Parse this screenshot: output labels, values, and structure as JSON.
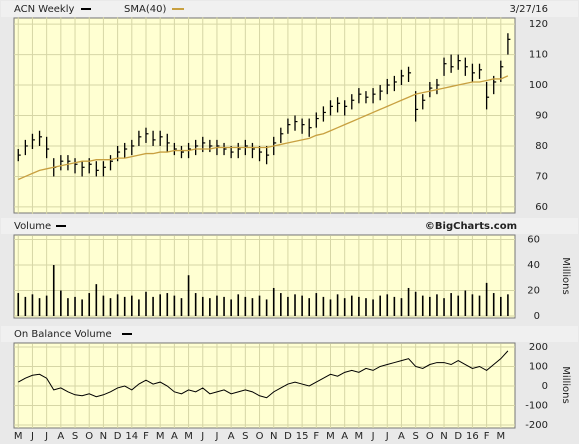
{
  "chart_data": [
    {
      "type": "ohlc",
      "title": "ACN Weekly",
      "date": "3/27/16",
      "x": [
        0,
        0.5,
        1,
        1.5,
        2,
        2.5,
        3,
        3.5,
        4,
        4.5,
        5,
        5.5,
        6,
        6.5,
        7,
        7.5,
        8,
        8.5,
        9,
        9.5,
        10,
        10.5,
        11,
        11.5,
        12,
        12.5,
        13,
        13.5,
        14,
        14.5,
        15,
        15.5,
        16,
        16.5,
        17,
        17.5,
        18,
        18.5,
        19,
        19.5,
        20,
        20.5,
        21,
        21.5,
        22,
        22.5,
        23,
        23.5,
        24,
        24.5,
        25,
        25.5,
        26,
        26.5,
        27,
        27.5,
        28,
        28.5,
        29,
        29.5,
        30,
        30.5,
        31,
        31.5,
        32,
        32.5,
        33,
        33.5,
        34,
        34.5
      ],
      "xlim": [
        -0.3,
        35.0
      ],
      "xticks": [
        {
          "value": 0,
          "label": "M"
        },
        {
          "value": 1,
          "label": "J"
        },
        {
          "value": 2,
          "label": "J"
        },
        {
          "value": 3,
          "label": "A"
        },
        {
          "value": 4,
          "label": "S"
        },
        {
          "value": 5,
          "label": "O"
        },
        {
          "value": 6,
          "label": "N"
        },
        {
          "value": 7,
          "label": "D"
        },
        {
          "value": 8,
          "label": "14"
        },
        {
          "value": 9,
          "label": "F"
        },
        {
          "value": 10,
          "label": "M"
        },
        {
          "value": 11,
          "label": "A"
        },
        {
          "value": 12,
          "label": "M"
        },
        {
          "value": 13,
          "label": "J"
        },
        {
          "value": 14,
          "label": "J"
        },
        {
          "value": 15,
          "label": "A"
        },
        {
          "value": 16,
          "label": "S"
        },
        {
          "value": 17,
          "label": "O"
        },
        {
          "value": 18,
          "label": "N"
        },
        {
          "value": 19,
          "label": "D"
        },
        {
          "value": 20,
          "label": "15"
        },
        {
          "value": 21,
          "label": "F"
        },
        {
          "value": 22,
          "label": "M"
        },
        {
          "value": 23,
          "label": "A"
        },
        {
          "value": 24,
          "label": "M"
        },
        {
          "value": 25,
          "label": "J"
        },
        {
          "value": 26,
          "label": "J"
        },
        {
          "value": 27,
          "label": "A"
        },
        {
          "value": 28,
          "label": "S"
        },
        {
          "value": 29,
          "label": "O"
        },
        {
          "value": 30,
          "label": "N"
        },
        {
          "value": 31,
          "label": "D"
        },
        {
          "value": 32,
          "label": "16"
        },
        {
          "value": 33,
          "label": "F"
        },
        {
          "value": 34,
          "label": "M"
        }
      ],
      "ylim": [
        58,
        122
      ],
      "yticks": [
        60,
        70,
        80,
        90,
        100,
        110,
        120
      ],
      "grid": true,
      "series": [
        {
          "name": "ACN Weekly",
          "color": "#000000",
          "high": [
            79,
            82,
            84,
            85,
            83,
            76,
            77,
            77,
            76,
            75,
            76,
            75,
            75,
            77,
            80,
            81,
            82,
            85,
            86,
            85,
            85,
            84,
            81,
            80,
            81,
            82,
            83,
            82,
            82,
            81,
            80,
            81,
            82,
            81,
            80,
            80,
            83,
            86,
            89,
            90,
            89,
            89,
            91,
            93,
            95,
            96,
            95,
            97,
            99,
            98,
            99,
            100,
            102,
            103,
            105,
            106,
            98,
            97,
            101,
            102,
            109,
            110,
            110,
            109,
            107,
            107,
            101,
            103,
            108,
            117
          ],
          "low": [
            75,
            77,
            79,
            80,
            76,
            70,
            72,
            72,
            71,
            70,
            71,
            70,
            70,
            72,
            75,
            76,
            77,
            80,
            81,
            80,
            80,
            78,
            77,
            76,
            76,
            77,
            78,
            78,
            77,
            77,
            76,
            76,
            77,
            76,
            75,
            74,
            77,
            81,
            84,
            85,
            84,
            83,
            86,
            88,
            90,
            91,
            90,
            92,
            94,
            94,
            94,
            95,
            97,
            98,
            100,
            101,
            88,
            92,
            96,
            97,
            103,
            104,
            105,
            103,
            101,
            102,
            92,
            97,
            101,
            110
          ],
          "close": [
            77,
            80,
            82,
            83,
            79,
            73,
            75,
            75,
            74,
            73,
            74,
            72,
            73,
            75,
            78,
            79,
            80,
            83,
            84,
            82,
            83,
            81,
            79,
            78,
            79,
            80,
            81,
            80,
            80,
            79,
            78,
            79,
            80,
            79,
            78,
            77,
            81,
            84,
            87,
            88,
            87,
            86,
            89,
            91,
            93,
            94,
            93,
            95,
            97,
            96,
            97,
            98,
            100,
            101,
            103,
            104,
            92,
            95,
            99,
            100,
            107,
            106,
            108,
            106,
            104,
            105,
            96,
            101,
            106,
            115
          ]
        },
        {
          "name": "SMA(40)",
          "color": "#c8a040",
          "values": [
            69,
            70,
            71,
            72,
            72.5,
            73,
            73.5,
            74,
            74.5,
            75,
            75,
            75.5,
            75.5,
            75.5,
            76,
            76,
            76.5,
            77,
            77.5,
            77.5,
            78,
            78,
            78.5,
            78.5,
            78.5,
            79,
            79,
            79,
            79.5,
            79.5,
            79.5,
            79.5,
            79.5,
            79.5,
            79.5,
            79.5,
            80,
            80.5,
            81,
            81.5,
            82,
            82.5,
            83.5,
            84,
            85,
            86,
            87,
            88,
            89,
            90,
            91,
            92,
            93,
            94,
            95,
            96,
            97,
            97.5,
            98,
            98.5,
            99,
            99.5,
            100,
            100.5,
            101,
            101,
            101.5,
            102,
            102,
            103
          ]
        }
      ]
    },
    {
      "type": "bar",
      "title": "Volume",
      "credit": "©BigCharts.com",
      "y_label": "Millions",
      "color": "#000000",
      "ylim": [
        0,
        62
      ],
      "yticks": [
        0,
        20,
        40,
        60
      ],
      "grid": true,
      "values": [
        18,
        15,
        17,
        14,
        16,
        40,
        20,
        14,
        15,
        13,
        18,
        25,
        16,
        14,
        17,
        15,
        16,
        13,
        19,
        15,
        17,
        18,
        16,
        14,
        32,
        18,
        15,
        14,
        16,
        15,
        13,
        17,
        15,
        14,
        16,
        13,
        22,
        18,
        15,
        17,
        16,
        14,
        18,
        15,
        13,
        17,
        14,
        16,
        15,
        14,
        13,
        16,
        17,
        15,
        14,
        22,
        19,
        16,
        15,
        17,
        14,
        18,
        16,
        20,
        17,
        16,
        26,
        18,
        15,
        17
      ]
    },
    {
      "type": "line",
      "title": "On Balance Volume",
      "y_label": "Millions",
      "color": "#000000",
      "ylim": [
        -210,
        210
      ],
      "yticks": [
        -200,
        -100,
        0,
        100,
        200
      ],
      "grid": true,
      "values": [
        20,
        40,
        55,
        60,
        40,
        -20,
        -10,
        -30,
        -45,
        -50,
        -40,
        -55,
        -45,
        -30,
        -10,
        0,
        -20,
        10,
        30,
        10,
        20,
        0,
        -30,
        -40,
        -20,
        -30,
        -10,
        -40,
        -30,
        -20,
        -40,
        -30,
        -20,
        -30,
        -50,
        -60,
        -30,
        -10,
        10,
        20,
        10,
        0,
        20,
        40,
        60,
        50,
        70,
        80,
        70,
        90,
        80,
        100,
        110,
        120,
        130,
        140,
        100,
        90,
        110,
        120,
        120,
        110,
        130,
        110,
        90,
        100,
        80,
        110,
        140,
        180
      ]
    }
  ]
}
